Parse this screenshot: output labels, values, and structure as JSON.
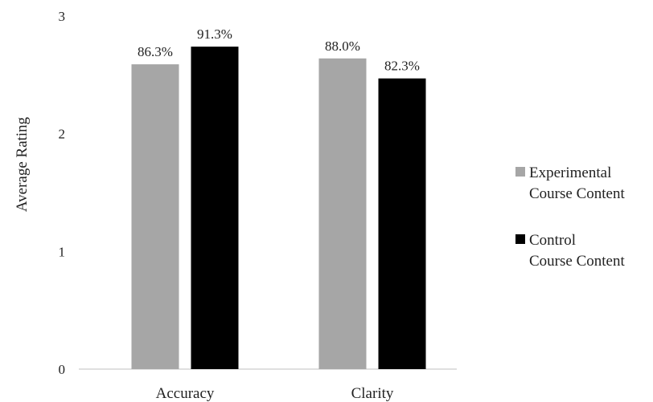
{
  "chart_data": {
    "type": "bar",
    "title": "",
    "xlabel": "",
    "ylabel": "Average Rating",
    "ylim": [
      0,
      3
    ],
    "yticks": [
      "0",
      "1",
      "2",
      "3"
    ],
    "grid": false,
    "legend_position": "right",
    "categories": [
      "Accuracy",
      "Clarity"
    ],
    "series": [
      {
        "name": "Experimental Course Content",
        "name_lines": [
          "Experimental",
          "Course Content"
        ],
        "color": "#a6a6a6",
        "values": [
          2.59,
          2.64
        ],
        "labels": [
          "86.3%",
          "88.0%"
        ]
      },
      {
        "name": "Control Course Content",
        "name_lines": [
          "Control",
          "Course Content"
        ],
        "color": "#000000",
        "values": [
          2.74,
          2.47
        ],
        "labels": [
          "91.3%",
          "82.3%"
        ]
      }
    ]
  }
}
